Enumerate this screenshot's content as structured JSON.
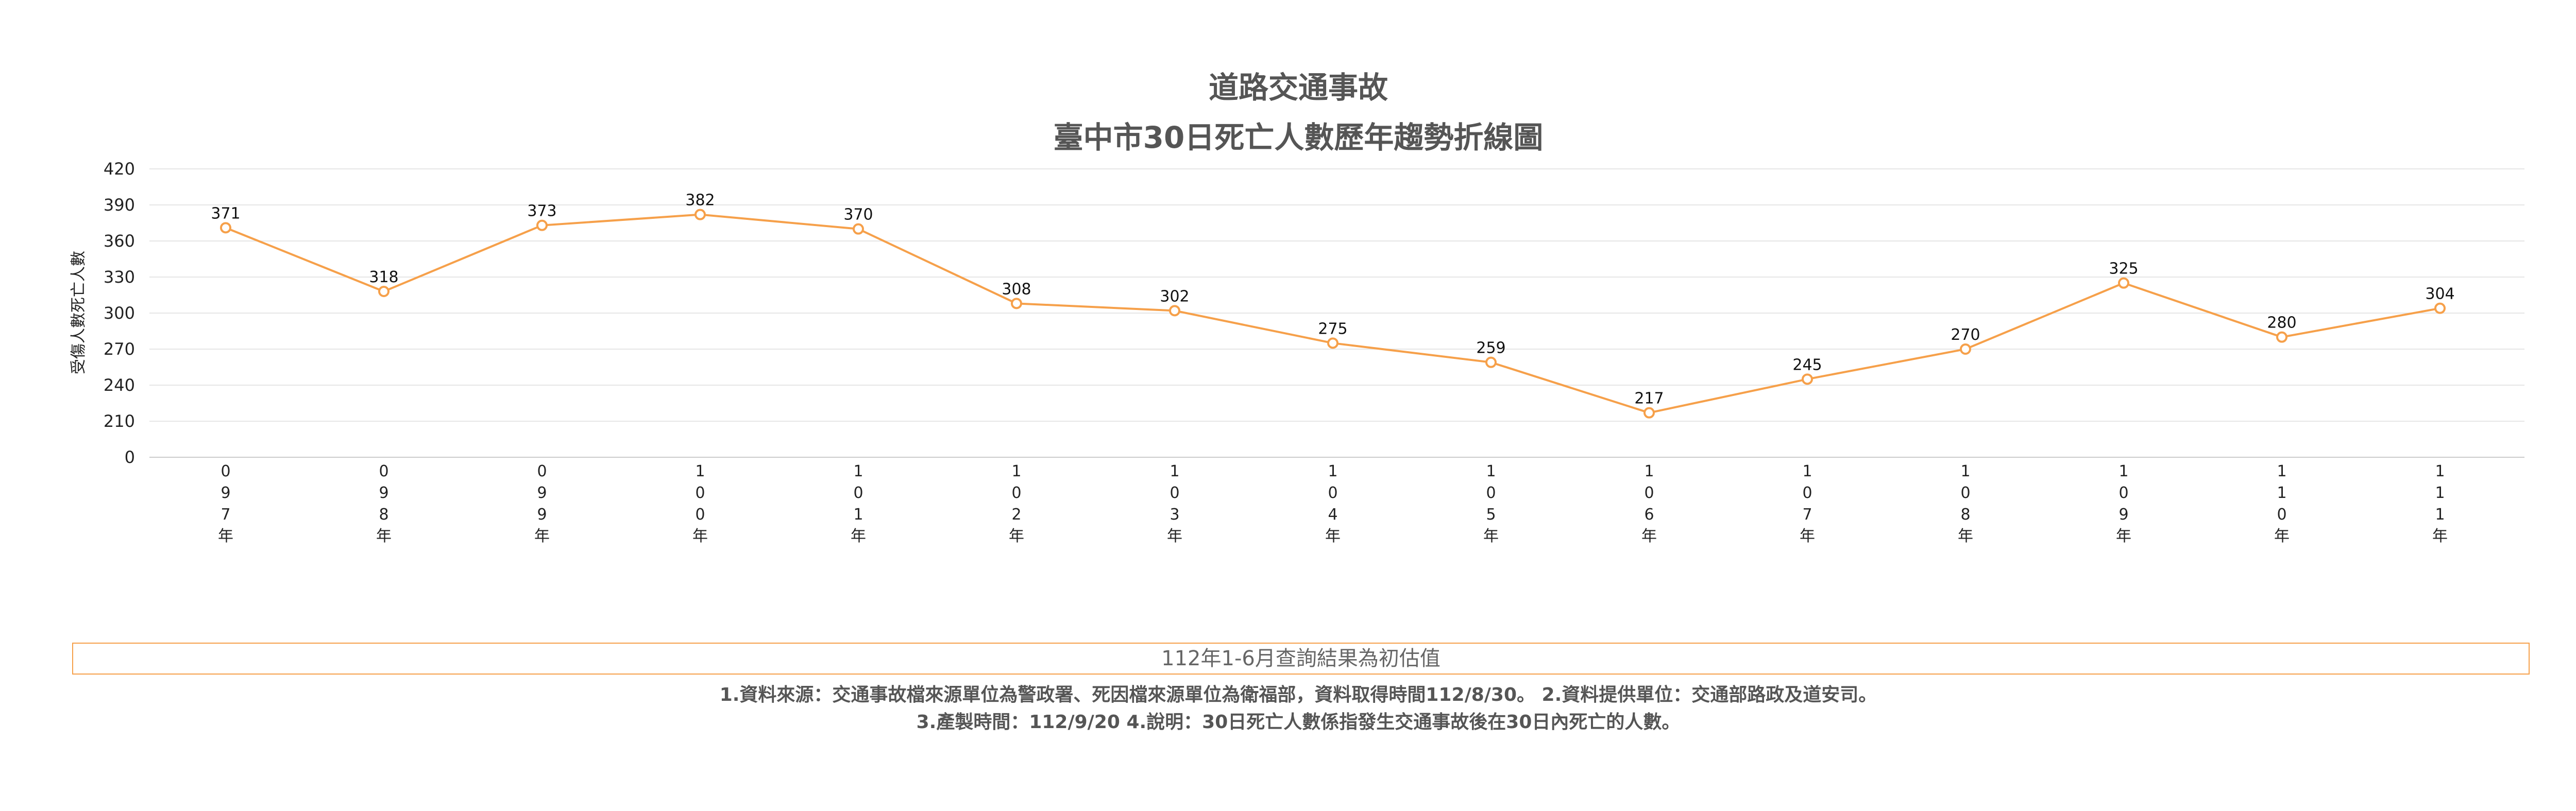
{
  "chart_data": {
    "type": "line",
    "title_line1": "道路交通事故",
    "title_line2": "臺中市30日死亡人數歷年趨勢折線圖",
    "ylabel": "受傷人數死亡人數",
    "xlabel": "",
    "categories": [
      "097年",
      "098年",
      "099年",
      "100年",
      "101年",
      "102年",
      "103年",
      "104年",
      "105年",
      "106年",
      "107年",
      "108年",
      "109年",
      "110年",
      "111年"
    ],
    "series": [
      {
        "values": [
          371,
          318,
          373,
          382,
          370,
          308,
          302,
          275,
          259,
          217,
          245,
          270,
          325,
          280,
          304
        ]
      }
    ],
    "ylim": [
      0,
      420
    ],
    "yticks": [
      0,
      210,
      240,
      270,
      300,
      330,
      360,
      390,
      420
    ],
    "grid": true,
    "line_color": "#f6a04a"
  },
  "note": "112年1-6月查詢結果為初估值",
  "footnote_line1": "1.資料來源：交通事故檔來源單位為警政署、死因檔來源單位為衛福部，資料取得時間112/8/30。 2.資料提供單位：交通部路政及道安司。",
  "footnote_line2": "3.產製時間：112/9/20 4.說明：30日死亡人數係指發生交通事故後在30日內死亡的人數。"
}
